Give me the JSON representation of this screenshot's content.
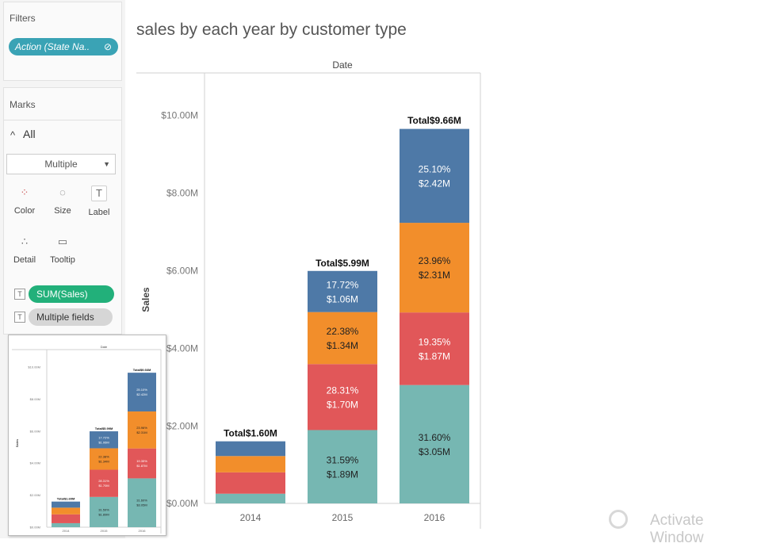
{
  "filters": {
    "title": "Filters",
    "pill": "Action (State Na.."
  },
  "marks": {
    "title": "Marks",
    "all_label": "All",
    "mark_type": "Multiple",
    "buttons": [
      "Color",
      "Size",
      "Label",
      "Detail",
      "Tooltip"
    ],
    "fields": [
      "SUM(Sales)",
      "Multiple fields"
    ]
  },
  "colors": {
    "blue": "#4e79a7",
    "orange": "#f28e2b",
    "red": "#e15759",
    "teal": "#76b7b2",
    "pill_teal": "#3aa3b5",
    "pill_green": "#22b07a"
  },
  "watermark": "Activate Window",
  "chart_data": {
    "type": "bar",
    "stacked": true,
    "title": "sales by each year by customer type",
    "column_header": "Date",
    "xlabel": "",
    "ylabel": "Sales",
    "ylim": [
      0,
      10.5
    ],
    "y_ticks": [
      "$0.00M",
      "$2.00M",
      "$4.00M",
      "$6.00M",
      "$8.00M",
      "$10.00M"
    ],
    "y_tick_values": [
      0,
      2,
      4,
      6,
      8,
      10
    ],
    "categories": [
      "2014",
      "2015",
      "2016"
    ],
    "totals": [
      1.6,
      5.99,
      9.66
    ],
    "total_labels": [
      "Total$1.60M",
      "Total$5.99M",
      "Total$9.66M"
    ],
    "series": [
      {
        "color": "#76b7b2",
        "values": [
          0.25,
          1.89,
          3.05
        ],
        "labels": [
          "",
          "31.59%\n$1.89M",
          "31.60%\n$3.05M"
        ],
        "label_color": "#222"
      },
      {
        "color": "#e15759",
        "values": [
          0.55,
          1.7,
          1.87
        ],
        "labels": [
          "",
          "28.31%\n$1.70M",
          "19.35%\n$1.87M"
        ],
        "label_color": "#ffffff"
      },
      {
        "color": "#f28e2b",
        "values": [
          0.42,
          1.34,
          2.31
        ],
        "labels": [
          "",
          "22.38%\n$1.34M",
          "23.96%\n$2.31M"
        ],
        "label_color": "#222"
      },
      {
        "color": "#4e79a7",
        "values": [
          0.38,
          1.06,
          2.42
        ],
        "labels": [
          "",
          "17.72%\n$1.06M",
          "25.10%\n$2.42M"
        ],
        "label_color": "#ffffff"
      }
    ]
  }
}
